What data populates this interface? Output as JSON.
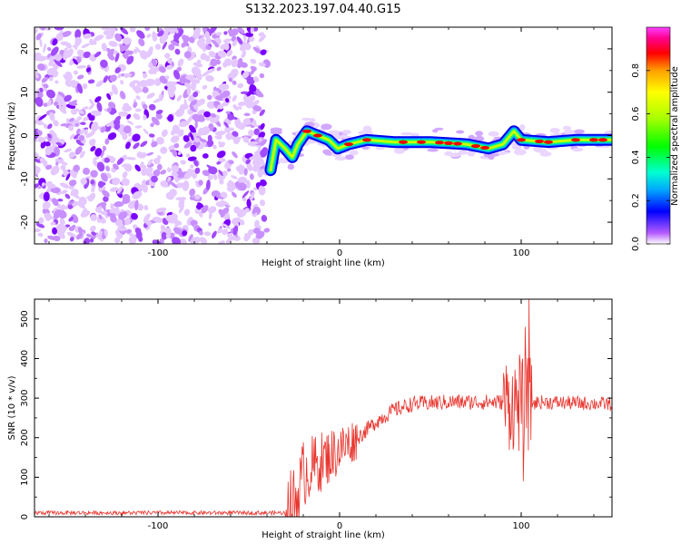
{
  "title": "S132.2023.197.04.40.G15",
  "chart_data": [
    {
      "type": "heatmap",
      "xlabel": "Height of straight line (km)",
      "ylabel": "Frequency (Hz)",
      "xlim": [
        -168,
        150
      ],
      "ylim": [
        -25,
        25
      ],
      "xticks": [
        -100,
        0,
        100
      ],
      "yticks": [
        -20,
        -10,
        0,
        10,
        20
      ],
      "colorbar": {
        "label": "Normalized spectral amplitude",
        "range": [
          0,
          1
        ],
        "ticks": [
          "0.0",
          "0.2",
          "0.4",
          "0.6",
          "0.8"
        ],
        "colormap": "gist_ncar"
      },
      "noise_region_x": [
        -168,
        -40
      ],
      "signal_track": [
        {
          "x": -38,
          "f": -8
        },
        {
          "x": -35,
          "f": -1
        },
        {
          "x": -30,
          "f": -3
        },
        {
          "x": -26,
          "f": -5
        },
        {
          "x": -23,
          "f": -2
        },
        {
          "x": -18,
          "f": 1
        },
        {
          "x": -12,
          "f": 0
        },
        {
          "x": -6,
          "f": -1
        },
        {
          "x": -1,
          "f": -3
        },
        {
          "x": 5,
          "f": -2
        },
        {
          "x": 15,
          "f": -1
        },
        {
          "x": 30,
          "f": -1.5
        },
        {
          "x": 50,
          "f": -1.5
        },
        {
          "x": 70,
          "f": -2
        },
        {
          "x": 82,
          "f": -3
        },
        {
          "x": 90,
          "f": -2
        },
        {
          "x": 96,
          "f": 1
        },
        {
          "x": 100,
          "f": -1
        },
        {
          "x": 115,
          "f": -1.5
        },
        {
          "x": 130,
          "f": -1
        },
        {
          "x": 150,
          "f": -1
        }
      ]
    },
    {
      "type": "line",
      "xlabel": "Height of straight line (km)",
      "ylabel": "SNR (10 * v/v)",
      "xlim": [
        -168,
        150
      ],
      "ylim": [
        0,
        550
      ],
      "xticks": [
        -100,
        0,
        100
      ],
      "yticks": [
        0,
        100,
        200,
        300,
        400,
        500
      ],
      "color": "#e8352e",
      "envelope": [
        {
          "x": -168,
          "y": 10
        },
        {
          "x": -30,
          "y": 10
        },
        {
          "x": -24,
          "y": 40
        },
        {
          "x": -20,
          "y": 110
        },
        {
          "x": -10,
          "y": 140
        },
        {
          "x": 0,
          "y": 170
        },
        {
          "x": 10,
          "y": 200
        },
        {
          "x": 20,
          "y": 240
        },
        {
          "x": 30,
          "y": 270
        },
        {
          "x": 40,
          "y": 285
        },
        {
          "x": 60,
          "y": 290
        },
        {
          "x": 90,
          "y": 290
        },
        {
          "x": 100,
          "y": 280
        },
        {
          "x": 110,
          "y": 290
        },
        {
          "x": 150,
          "y": 285
        }
      ],
      "spikes": [
        {
          "x": 99,
          "y": 410
        },
        {
          "x": 102,
          "y": 480
        },
        {
          "x": 104,
          "y": 550
        },
        {
          "x": 101,
          "y": 90
        }
      ]
    }
  ]
}
